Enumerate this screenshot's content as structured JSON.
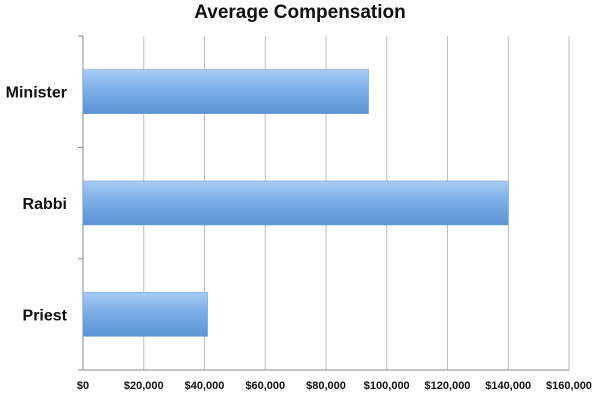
{
  "chart_data": {
    "type": "bar",
    "orientation": "horizontal",
    "title": "Average Compensation",
    "xlabel": "",
    "ylabel": "",
    "categories": [
      "Minister",
      "Rabbi",
      "Priest"
    ],
    "values": [
      94000,
      140000,
      41000
    ],
    "xlim": [
      0,
      160000
    ],
    "x_ticks": [
      0,
      20000,
      40000,
      60000,
      80000,
      100000,
      120000,
      140000,
      160000
    ],
    "x_tick_labels": [
      "$0",
      "$20,000",
      "$40,000",
      "$60,000",
      "$80,000",
      "$100,000",
      "$120,000",
      "$140,000",
      "$160,000"
    ],
    "grid": "vertical",
    "legend": "none",
    "bar_color": "#7aaee6",
    "bar_color_light": "#a9ccf5",
    "bar_color_dark": "#5b94d6"
  }
}
